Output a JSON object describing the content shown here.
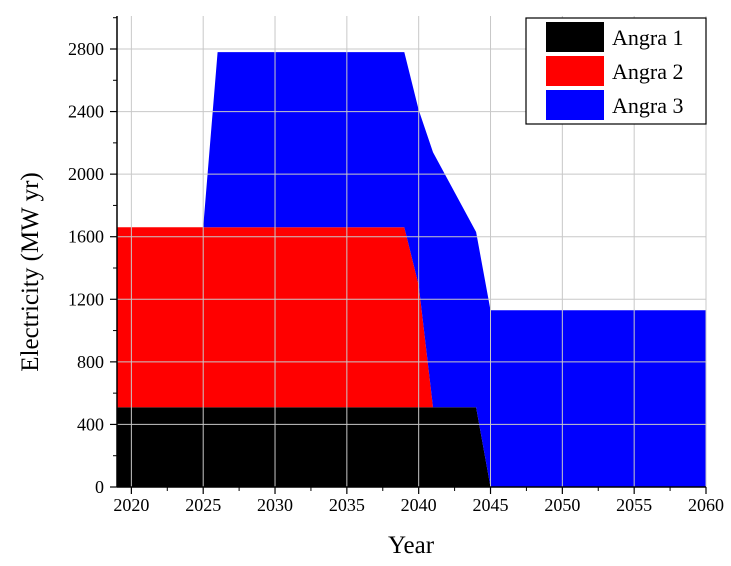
{
  "chart_data": {
    "type": "area",
    "stacked": true,
    "title": "",
    "xlabel": "Year",
    "ylabel": "Electricity (MW yr)",
    "xlim": [
      2019,
      2060
    ],
    "ylim": [
      0,
      2800
    ],
    "xticks": [
      2020,
      2025,
      2030,
      2035,
      2040,
      2045,
      2050,
      2055,
      2060
    ],
    "yticks": [
      0,
      400,
      800,
      1200,
      1600,
      2000,
      2400,
      2800
    ],
    "grid": true,
    "legend_position": "top-right",
    "series": [
      {
        "name": "Angra 1",
        "color": "#000000",
        "points": [
          [
            2019,
            510
          ],
          [
            2044,
            510
          ],
          [
            2045,
            0
          ],
          [
            2060,
            0
          ]
        ]
      },
      {
        "name": "Angra 2",
        "color": "#ff0000",
        "points": [
          [
            2019,
            1150
          ],
          [
            2039,
            1150
          ],
          [
            2040,
            780
          ],
          [
            2041,
            0
          ],
          [
            2060,
            0
          ]
        ]
      },
      {
        "name": "Angra 3",
        "color": "#0000ff",
        "points": [
          [
            2019,
            0
          ],
          [
            2025,
            0
          ],
          [
            2026,
            1120
          ],
          [
            2039,
            1120
          ],
          [
            2040,
            1120
          ],
          [
            2041,
            1630
          ],
          [
            2044,
            1120
          ],
          [
            2045,
            1130
          ],
          [
            2060,
            1130
          ]
        ]
      }
    ]
  }
}
